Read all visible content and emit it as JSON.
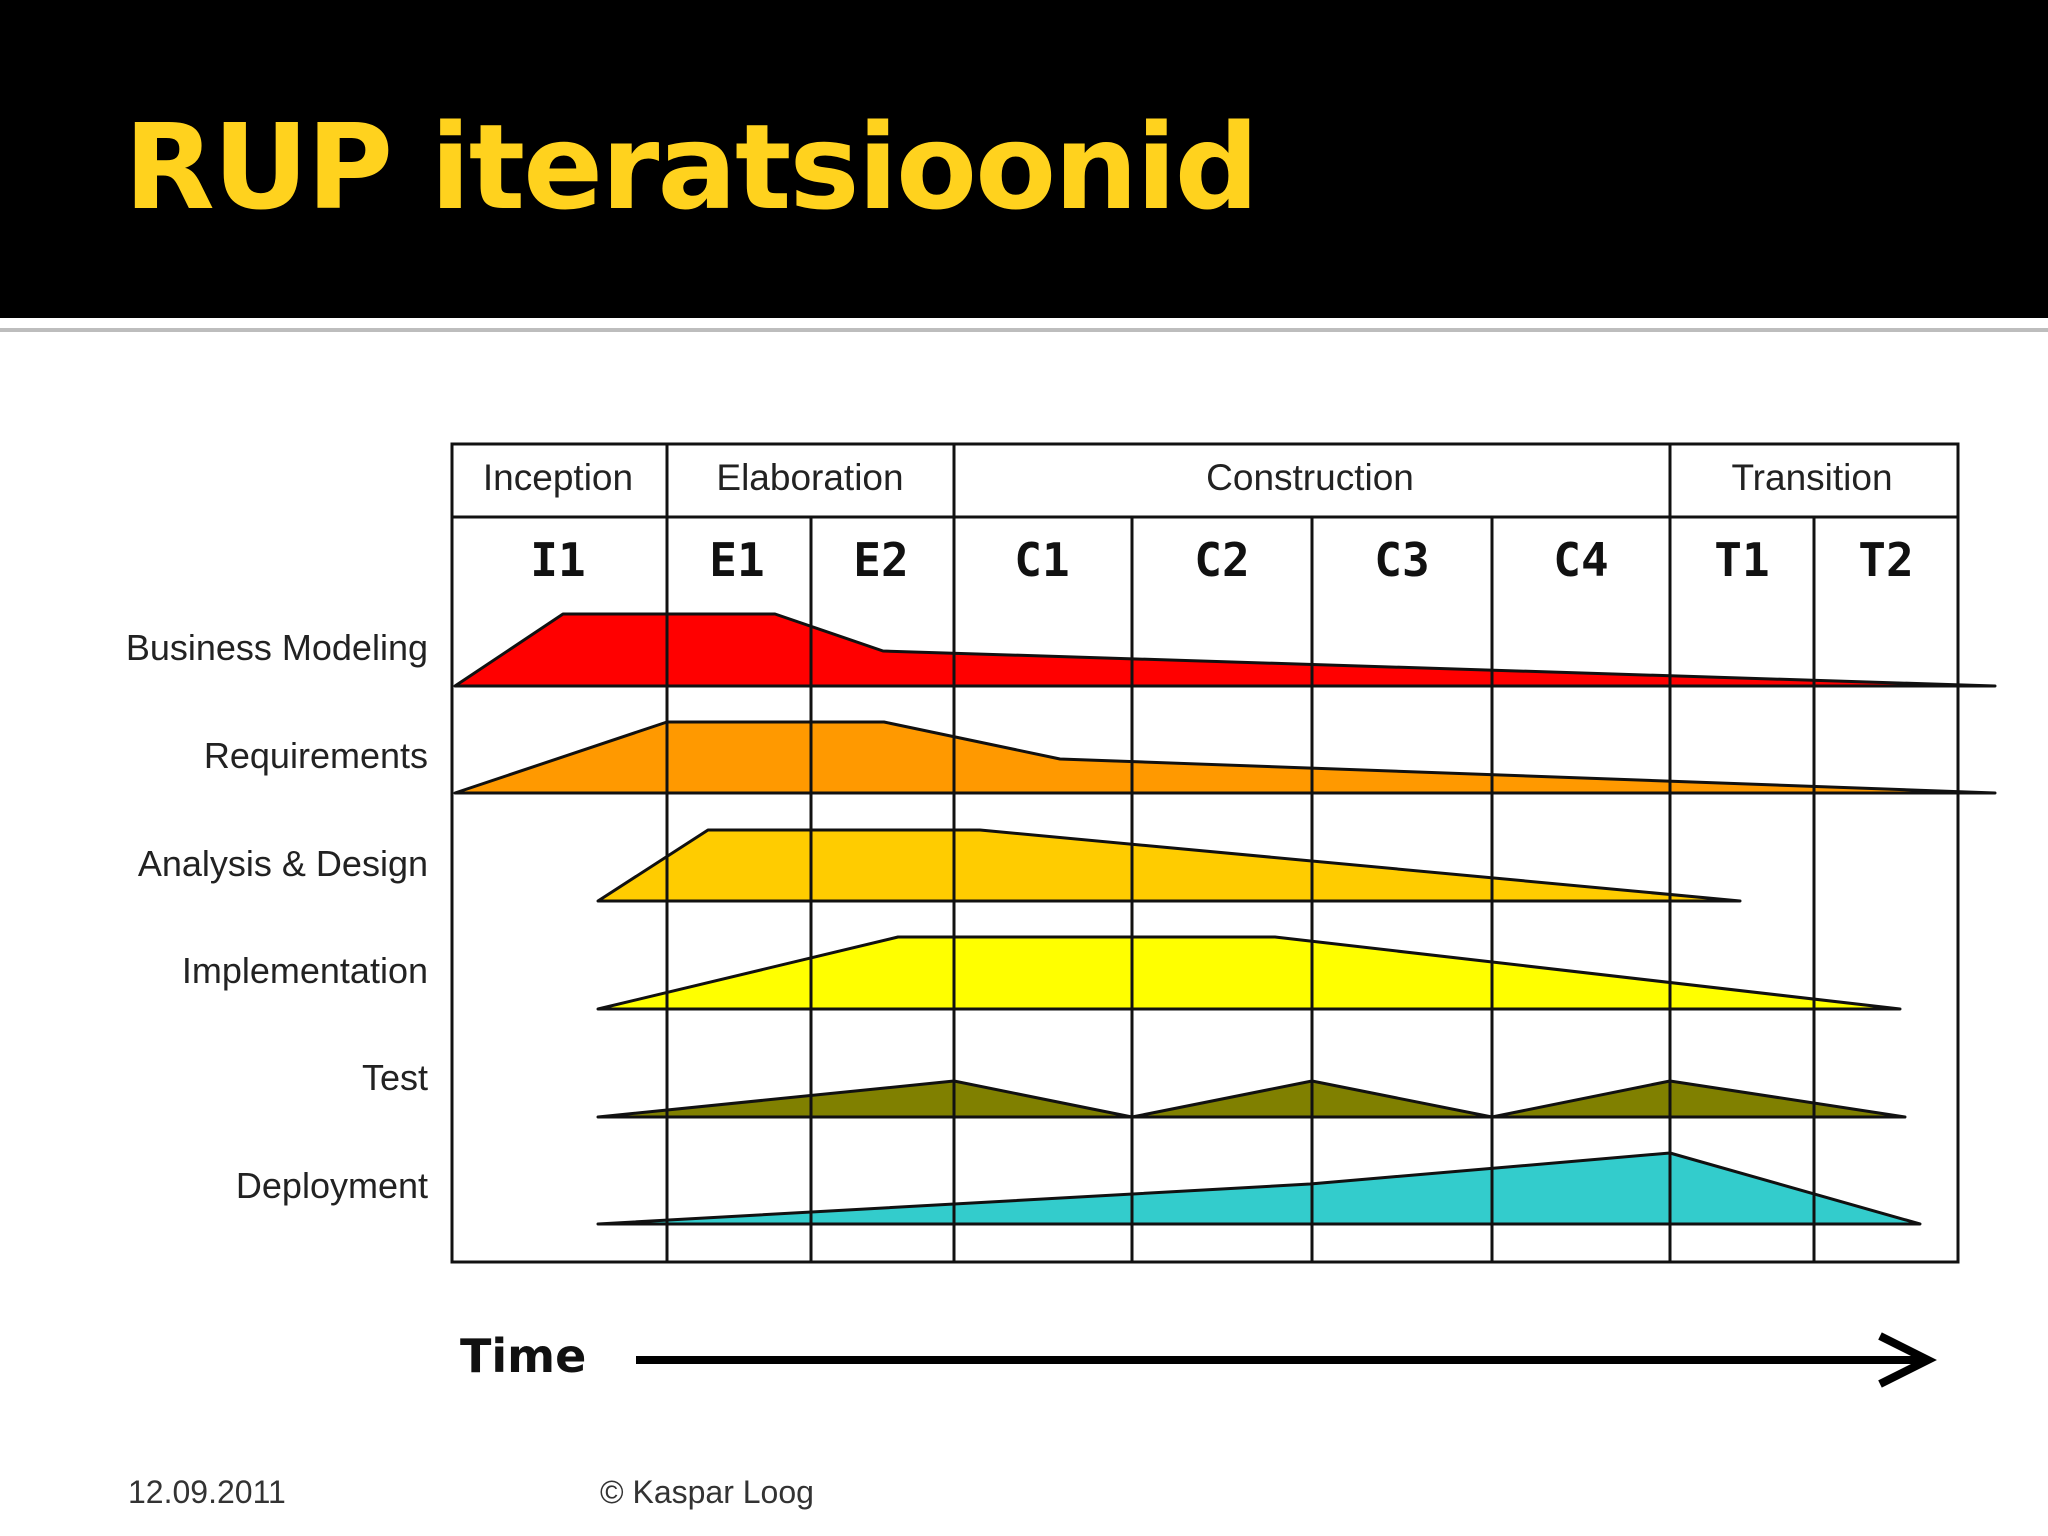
{
  "slide": {
    "title": "RUP iteratsioonid",
    "footer_date": "12.09.2011",
    "footer_author": "© Kaspar Loog"
  },
  "diagram": {
    "phases": [
      "Inception",
      "Elaboration",
      "Construction",
      "Transition"
    ],
    "iterations": [
      "I1",
      "E1",
      "E2",
      "C1",
      "C2",
      "C3",
      "C4",
      "T1",
      "T2"
    ],
    "time_label": "Time",
    "disciplines": [
      {
        "label": "Business Modeling",
        "color": "#ff0000"
      },
      {
        "label": "Requirements",
        "color": "#ff9900"
      },
      {
        "label": "Analysis & Design",
        "color": "#ffcc00"
      },
      {
        "label": "Implementation",
        "color": "#ffff00"
      },
      {
        "label": "Test",
        "color": "#808000"
      },
      {
        "label": "Deployment",
        "color": "#33cccc"
      }
    ]
  }
}
